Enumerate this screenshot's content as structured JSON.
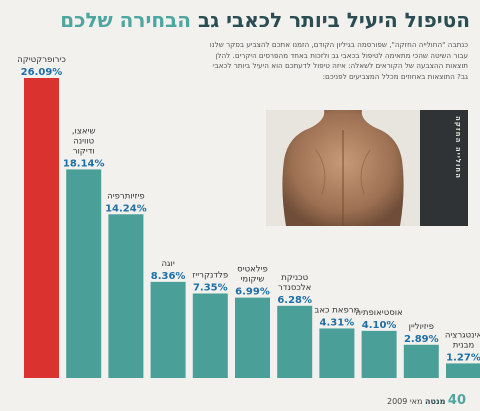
{
  "header": {
    "title_main": "הטיפול היעיל ביותר לכאבי גב",
    "title_accent": "הבחירה שלכם",
    "intro": "כנתבה \"החולייה החזקה\", שפורסמה בגיליון הקודם, הזמנו אתכם להצביע בסקר שלנו עבור השיטה שהכי מתאימה לטיפול בכאבי גב ולזכות באחד מהפרסים היקרים. להלן תוצאות ההצבעה של הקוראים לשאלה: איזה טיפול לדעתכם הוא היעיל ביותר לכאבי גב? התוצאות באחוזים מכלל המצביעים לפניכם:"
  },
  "photo": {
    "caption": "החולייה החזקה"
  },
  "footer": {
    "page": "40",
    "issue": "מאי 2009",
    "magazine": "מנטה"
  },
  "colors": {
    "highlight": "#d9322f",
    "bar": "#4a9f99",
    "value_text": "#1d6fa6",
    "label_text": "#333333",
    "title": "#2a4d52",
    "title_accent": "#4ea6a0"
  },
  "chart_data": {
    "type": "bar",
    "title": "הטיפול היעיל ביותר לכאבי גב הבחירה שלכם",
    "categories": [
      "כירופרקטיקה",
      "שיאצו, טווינה ודיקור",
      "פיזיותרפיה",
      "יוגה",
      "פלדנקרייז",
      "פילאטיס שיקומי",
      "טכניקת אלכסנדר",
      "מרפאת כאב",
      "אוסטיאופתיה",
      "פיזיוליין",
      "אינטגרציה מבנית"
    ],
    "values": [
      26.09,
      18.14,
      14.24,
      8.36,
      7.35,
      6.99,
      6.28,
      4.31,
      4.1,
      2.89,
      1.27
    ],
    "value_labels": [
      "26.09%",
      "18.14%",
      "14.24%",
      "8.36%",
      "7.35%",
      "6.99%",
      "6.28%",
      "4.31%",
      "4.10%",
      "2.89%",
      "1.27%"
    ],
    "highlight_index": 0,
    "ylim": [
      0,
      26.09
    ],
    "grid": false,
    "legend": "none"
  }
}
